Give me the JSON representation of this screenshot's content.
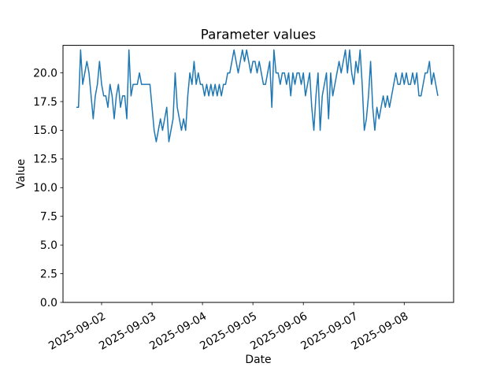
{
  "figure": {
    "background": "#ffffff",
    "frame_color": "#000000"
  },
  "chart_data": {
    "type": "line",
    "title": "Parameter values",
    "xlabel": "Date",
    "ylabel": "Value",
    "series_name": "Parameter values",
    "series_color": "#1f77b4",
    "grid": false,
    "legend": null,
    "x_start": "2025-09-01T12:00",
    "x_step_hours": 1,
    "ylim": [
      0,
      22.4
    ],
    "yticks": [
      0.0,
      2.5,
      5.0,
      7.5,
      10.0,
      12.5,
      15.0,
      17.5,
      20.0
    ],
    "ytick_labels": [
      "0.0",
      "2.5",
      "5.0",
      "7.5",
      "10.0",
      "12.5",
      "15.0",
      "17.5",
      "20.0"
    ],
    "xtick_dates": [
      "2025-09-02",
      "2025-09-03",
      "2025-09-04",
      "2025-09-05",
      "2025-09-06",
      "2025-09-07",
      "2025-09-08"
    ],
    "values": [
      17,
      17,
      22,
      19,
      20,
      21,
      20,
      18,
      16,
      18,
      19,
      21,
      19,
      18,
      18,
      17,
      19,
      18,
      16,
      18,
      19,
      17,
      18,
      18,
      16,
      22,
      18,
      19,
      19,
      19,
      20,
      19,
      19,
      19,
      19,
      19,
      17,
      15,
      14,
      15,
      16,
      15,
      16,
      17,
      14,
      15,
      16,
      20,
      17,
      16,
      15,
      16,
      15,
      18,
      20,
      19,
      21,
      19,
      20,
      19,
      19,
      18,
      19,
      18,
      19,
      18,
      19,
      18,
      19,
      18,
      19,
      19,
      20,
      20,
      21,
      22,
      21,
      20,
      21,
      22,
      21,
      22,
      21,
      20,
      21,
      21,
      20,
      21,
      20,
      19,
      19,
      20,
      21,
      17,
      22,
      20,
      20,
      19,
      20,
      20,
      19,
      20,
      18,
      20,
      19,
      20,
      20,
      19,
      20,
      18,
      19,
      20,
      17,
      15,
      18,
      20,
      15,
      18,
      19,
      20,
      16,
      20,
      18,
      19,
      20,
      21,
      20,
      21,
      22,
      20,
      22,
      20,
      19,
      21,
      20,
      22,
      19,
      15,
      16,
      18,
      21,
      17,
      15,
      17,
      16,
      17,
      18,
      17,
      18,
      17,
      18,
      19,
      20,
      19,
      19,
      20,
      19,
      20,
      19,
      19,
      20,
      19,
      20,
      18,
      18,
      19,
      20,
      20,
      21,
      19,
      20,
      19,
      18
    ]
  }
}
